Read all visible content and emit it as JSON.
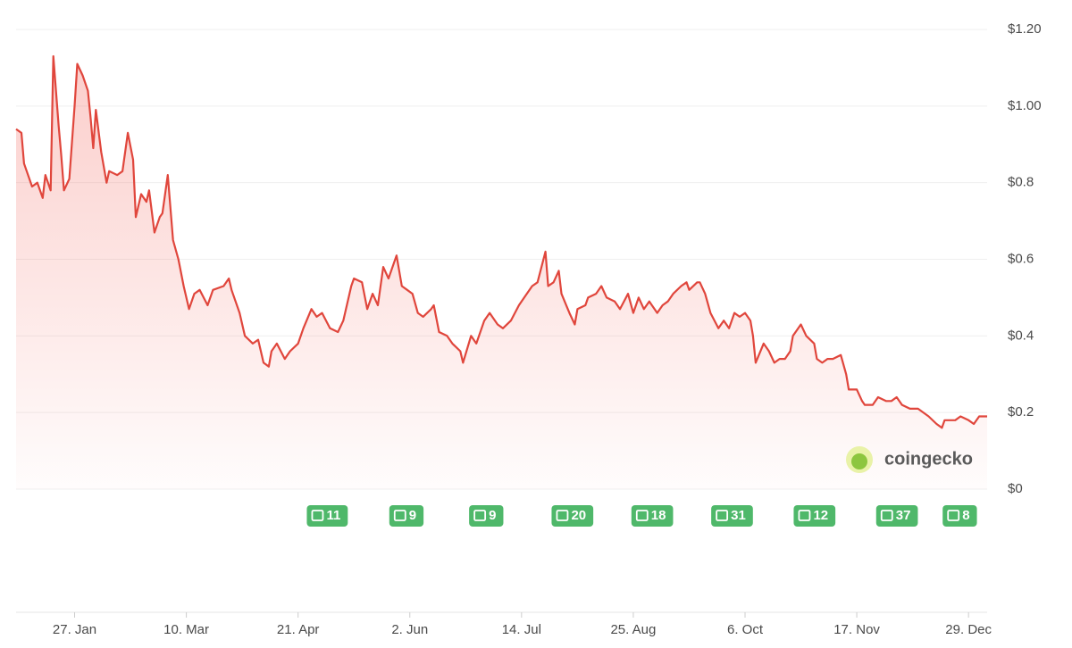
{
  "chart_data": {
    "type": "line",
    "color": "#e0463c",
    "watermark": "coingecko",
    "grid": true,
    "xlim": [
      0,
      365
    ],
    "ylim": [
      0,
      1.2
    ],
    "yticks": [
      {
        "value": 0,
        "label": "$0"
      },
      {
        "value": 0.2,
        "label": "$0.2"
      },
      {
        "value": 0.4,
        "label": "$0.4"
      },
      {
        "value": 0.6,
        "label": "$0.6"
      },
      {
        "value": 0.8,
        "label": "$0.8"
      },
      {
        "value": 1.0,
        "label": "$1.00"
      },
      {
        "value": 1.2,
        "label": "$1.20"
      }
    ],
    "xticks": [
      {
        "value": 22,
        "label": "27. Jan"
      },
      {
        "value": 64,
        "label": "10. Mar"
      },
      {
        "value": 106,
        "label": "21. Apr"
      },
      {
        "value": 148,
        "label": "2. Jun"
      },
      {
        "value": 190,
        "label": "14. Jul"
      },
      {
        "value": 232,
        "label": "25. Aug"
      },
      {
        "value": 274,
        "label": "6. Oct"
      },
      {
        "value": 316,
        "label": "17. Nov"
      },
      {
        "value": 358,
        "label": "29. Dec"
      }
    ],
    "news": [
      {
        "x": 116,
        "count": 11
      },
      {
        "x": 147,
        "count": 9
      },
      {
        "x": 177,
        "count": 9
      },
      {
        "x": 208,
        "count": 20
      },
      {
        "x": 238,
        "count": 18
      },
      {
        "x": 268,
        "count": 31
      },
      {
        "x": 299,
        "count": 12
      },
      {
        "x": 330,
        "count": 37
      },
      {
        "x": 355,
        "count": 8
      }
    ],
    "x": [
      0,
      2,
      3,
      6,
      8,
      10,
      11,
      13,
      14,
      16,
      17,
      18,
      20,
      22,
      23,
      25,
      27,
      28,
      29,
      30,
      32,
      34,
      35,
      38,
      40,
      42,
      44,
      45,
      47,
      49,
      50,
      52,
      54,
      55,
      57,
      59,
      61,
      63,
      65,
      67,
      69,
      72,
      74,
      78,
      80,
      81,
      84,
      86,
      89,
      91,
      93,
      95,
      96,
      98,
      101,
      103,
      106,
      108,
      111,
      113,
      115,
      118,
      121,
      123,
      126,
      127,
      130,
      132,
      134,
      136,
      138,
      140,
      143,
      145,
      147,
      149,
      151,
      153,
      156,
      157,
      159,
      162,
      164,
      167,
      168,
      171,
      173,
      176,
      178,
      181,
      183,
      186,
      189,
      191,
      194,
      196,
      199,
      200,
      202,
      204,
      205,
      208,
      210,
      211,
      214,
      215,
      218,
      220,
      222,
      225,
      227,
      230,
      232,
      234,
      236,
      238,
      241,
      243,
      245,
      247,
      250,
      252,
      253,
      256,
      257,
      259,
      261,
      264,
      266,
      268,
      270,
      272,
      274,
      276,
      277,
      278,
      281,
      283,
      285,
      287,
      289,
      291,
      292,
      295,
      297,
      300,
      301,
      303,
      305,
      307,
      310,
      312,
      313,
      316,
      318,
      319,
      322,
      324,
      327,
      329,
      331,
      333,
      336,
      339,
      343,
      346,
      348,
      349,
      353,
      355,
      358,
      360,
      362,
      365
    ],
    "values": [
      0.94,
      0.93,
      0.85,
      0.79,
      0.8,
      0.76,
      0.82,
      0.78,
      1.13,
      0.95,
      0.87,
      0.78,
      0.81,
      1.0,
      1.11,
      1.08,
      1.04,
      0.97,
      0.89,
      0.99,
      0.88,
      0.8,
      0.83,
      0.82,
      0.83,
      0.93,
      0.86,
      0.71,
      0.77,
      0.75,
      0.78,
      0.67,
      0.71,
      0.72,
      0.82,
      0.65,
      0.6,
      0.53,
      0.47,
      0.51,
      0.52,
      0.48,
      0.52,
      0.53,
      0.55,
      0.52,
      0.46,
      0.4,
      0.38,
      0.39,
      0.33,
      0.32,
      0.36,
      0.38,
      0.34,
      0.36,
      0.38,
      0.42,
      0.47,
      0.45,
      0.46,
      0.42,
      0.41,
      0.44,
      0.53,
      0.55,
      0.54,
      0.47,
      0.51,
      0.48,
      0.58,
      0.55,
      0.61,
      0.53,
      0.52,
      0.51,
      0.46,
      0.45,
      0.47,
      0.48,
      0.41,
      0.4,
      0.38,
      0.36,
      0.33,
      0.4,
      0.38,
      0.44,
      0.46,
      0.43,
      0.42,
      0.44,
      0.48,
      0.5,
      0.53,
      0.54,
      0.62,
      0.53,
      0.54,
      0.57,
      0.51,
      0.46,
      0.43,
      0.47,
      0.48,
      0.5,
      0.51,
      0.53,
      0.5,
      0.49,
      0.47,
      0.51,
      0.46,
      0.5,
      0.47,
      0.49,
      0.46,
      0.48,
      0.49,
      0.51,
      0.53,
      0.54,
      0.52,
      0.54,
      0.54,
      0.51,
      0.46,
      0.42,
      0.44,
      0.42,
      0.46,
      0.45,
      0.46,
      0.44,
      0.4,
      0.33,
      0.38,
      0.36,
      0.33,
      0.34,
      0.34,
      0.36,
      0.4,
      0.43,
      0.4,
      0.38,
      0.34,
      0.33,
      0.34,
      0.34,
      0.35,
      0.3,
      0.26,
      0.26,
      0.23,
      0.22,
      0.22,
      0.24,
      0.23,
      0.23,
      0.24,
      0.22,
      0.21,
      0.21,
      0.19,
      0.17,
      0.16,
      0.18,
      0.18,
      0.19,
      0.18,
      0.17,
      0.19,
      0.19
    ]
  }
}
